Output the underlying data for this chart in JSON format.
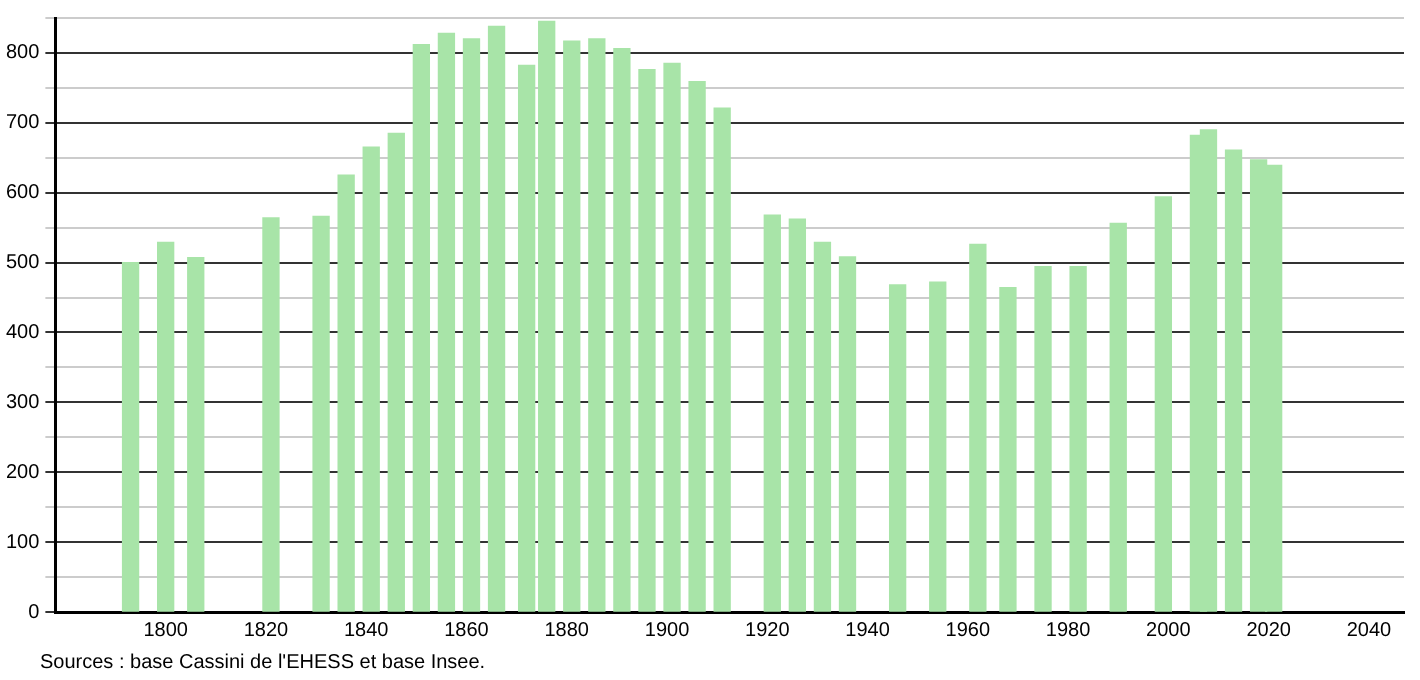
{
  "chart_data": {
    "type": "bar",
    "x": [
      1793,
      1800,
      1806,
      1821,
      1831,
      1836,
      1841,
      1846,
      1851,
      1856,
      1861,
      1866,
      1872,
      1876,
      1881,
      1886,
      1891,
      1896,
      1901,
      1906,
      1911,
      1921,
      1926,
      1931,
      1936,
      1946,
      1954,
      1962,
      1968,
      1975,
      1982,
      1990,
      1999,
      2006,
      2008,
      2013,
      2018,
      2021
    ],
    "values": [
      500,
      529,
      507,
      564,
      566,
      625,
      665,
      685,
      812,
      828,
      820,
      838,
      782,
      845,
      817,
      820,
      806,
      776,
      785,
      759,
      721,
      568,
      562,
      529,
      508,
      468,
      472,
      526,
      464,
      494,
      494,
      556,
      594,
      682,
      690,
      661,
      647,
      639
    ],
    "color": "#a8e4a8",
    "xlim": [
      1778,
      2047
    ],
    "xticks": [
      1800,
      1820,
      1840,
      1860,
      1880,
      1900,
      1920,
      1940,
      1960,
      1980,
      2000,
      2020,
      2040
    ],
    "ylim": [
      0,
      850
    ],
    "yticks": [
      0,
      {
        "value": 50,
        "label": null
      },
      100,
      {
        "value": 150,
        "label": null
      },
      200,
      {
        "value": 250,
        "label": null
      },
      300,
      {
        "value": 350,
        "label": null
      },
      400,
      {
        "value": 450,
        "label": null
      },
      500,
      {
        "value": 550,
        "label": null
      },
      600,
      {
        "value": 650,
        "label": null
      },
      700,
      {
        "value": 750,
        "label": null
      },
      800,
      {
        "value": 850,
        "label": null
      }
    ],
    "grid": "y",
    "annotations": [
      "Sources : base Cassini de l'EHESS et base Insee."
    ]
  }
}
